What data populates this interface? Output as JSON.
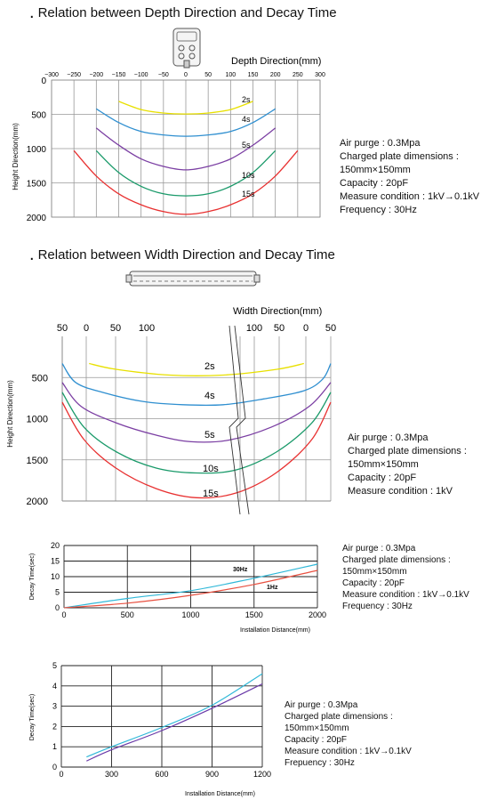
{
  "chart_data": [
    {
      "type": "line",
      "title": "Relation between Depth Direction and Decay Time",
      "xlabel": "Depth Direction(mm)",
      "ylabel": "Height Direction(mm)",
      "xlim": [
        -300,
        300
      ],
      "ylim": [
        0,
        2000
      ],
      "x_ticks": [
        "-300",
        "-250",
        "-200",
        "-150",
        "-100",
        "-50",
        "0",
        "50",
        "100",
        "150",
        "200",
        "250",
        "300"
      ],
      "y_ticks": [
        "0",
        "500",
        "1000",
        "1500",
        "2000"
      ],
      "y_inverted": true,
      "grid": true,
      "series": [
        {
          "name": "2s",
          "color": "#e8e000",
          "x": [
            -150,
            -100,
            -50,
            0,
            50,
            100,
            150
          ],
          "y": [
            310,
            430,
            480,
            495,
            480,
            430,
            310
          ]
        },
        {
          "name": "4s",
          "color": "#2f8fd0",
          "x": [
            -200,
            -150,
            -100,
            -50,
            0,
            50,
            100,
            150,
            200
          ],
          "y": [
            420,
            620,
            750,
            800,
            820,
            800,
            750,
            620,
            420
          ]
        },
        {
          "name": "5s",
          "color": "#7b3fa3",
          "x": [
            -200,
            -150,
            -100,
            -50,
            0,
            50,
            100,
            150,
            200
          ],
          "y": [
            700,
            950,
            1150,
            1260,
            1310,
            1260,
            1150,
            950,
            700
          ]
        },
        {
          "name": "10s",
          "color": "#1a9a6a",
          "x": [
            -200,
            -150,
            -100,
            -50,
            0,
            50,
            100,
            150,
            200
          ],
          "y": [
            1030,
            1350,
            1550,
            1660,
            1690,
            1660,
            1550,
            1350,
            1030
          ]
        },
        {
          "name": "15s",
          "color": "#e83030",
          "x": [
            -250,
            -200,
            -150,
            -100,
            -50,
            0,
            50,
            100,
            150,
            200,
            250
          ],
          "y": [
            1030,
            1400,
            1660,
            1820,
            1920,
            1960,
            1920,
            1820,
            1660,
            1400,
            1030
          ]
        }
      ]
    },
    {
      "type": "line",
      "title": "Relation between Width Direction and Decay Time",
      "xlabel": "Width Direction(mm)",
      "ylabel": "Height Direction(mm)",
      "x_ticks_left": [
        "50",
        "0",
        "50",
        "100"
      ],
      "x_ticks_right": [
        "100",
        "50",
        "0",
        "50"
      ],
      "y_ticks": [
        "500",
        "1000",
        "1500",
        "2000"
      ],
      "ylim": [
        0,
        2000
      ],
      "y_inverted": true,
      "grid": true,
      "series": [
        {
          "name": "2s",
          "color": "#e8e000",
          "x": [
            0.1,
            0.2,
            0.4,
            0.6,
            0.8,
            0.9
          ],
          "y": [
            330,
            400,
            470,
            470,
            400,
            330
          ]
        },
        {
          "name": "4s",
          "color": "#2f8fd0",
          "x": [
            0.0,
            0.05,
            0.15,
            0.3,
            0.45,
            0.6,
            0.75,
            0.9,
            0.97,
            1.0
          ],
          "y": [
            330,
            560,
            680,
            790,
            830,
            830,
            760,
            660,
            520,
            330
          ]
        },
        {
          "name": "5s",
          "color": "#7b3fa3",
          "x": [
            0.0,
            0.07,
            0.2,
            0.35,
            0.48,
            0.62,
            0.78,
            0.92,
            1.0
          ],
          "y": [
            560,
            850,
            1050,
            1200,
            1280,
            1260,
            1100,
            850,
            560
          ]
        },
        {
          "name": "10s",
          "color": "#1a9a6a",
          "x": [
            0.0,
            0.08,
            0.2,
            0.35,
            0.5,
            0.65,
            0.8,
            0.93,
            1.0
          ],
          "y": [
            680,
            1100,
            1400,
            1600,
            1660,
            1620,
            1400,
            1050,
            680
          ]
        },
        {
          "name": "15s",
          "color": "#e83030",
          "x": [
            0.0,
            0.08,
            0.2,
            0.35,
            0.5,
            0.65,
            0.8,
            0.93,
            1.0
          ],
          "y": [
            800,
            1250,
            1600,
            1850,
            1960,
            1900,
            1650,
            1250,
            800
          ]
        }
      ]
    },
    {
      "type": "line",
      "xlabel": "Installation Distance(mm)",
      "ylabel": "Decay Time(sec)",
      "xlim": [
        0,
        2000
      ],
      "ylim": [
        0,
        20
      ],
      "x_ticks": [
        "0",
        "500",
        "1000",
        "1500",
        "2000"
      ],
      "y_ticks": [
        "0",
        "5",
        "10",
        "15",
        "20"
      ],
      "grid": true,
      "series": [
        {
          "name": "30Hz",
          "color": "#30b8d8",
          "x": [
            0,
            500,
            1000,
            1500,
            2000
          ],
          "y": [
            0,
            3,
            5.5,
            9.5,
            14
          ]
        },
        {
          "name": "1Hz",
          "color": "#e85040",
          "x": [
            0,
            500,
            1000,
            1500,
            2000
          ],
          "y": [
            0,
            1.5,
            4,
            7.5,
            12
          ]
        }
      ]
    },
    {
      "type": "line",
      "xlabel": "Installation Distance(mm)",
      "ylabel": "Decay Time(sec)",
      "xlim": [
        0,
        1200
      ],
      "ylim": [
        0,
        5
      ],
      "x_ticks": [
        "0",
        "300",
        "600",
        "900",
        "1200"
      ],
      "y_ticks": [
        "0",
        "1",
        "2",
        "3",
        "4",
        "5"
      ],
      "grid": true,
      "series": [
        {
          "color": "#30b8d8",
          "x": [
            150,
            300,
            600,
            900,
            1200
          ],
          "y": [
            0.5,
            1.0,
            1.95,
            3.05,
            4.6
          ]
        },
        {
          "color": "#6a3aa8",
          "x": [
            150,
            300,
            600,
            900,
            1200
          ],
          "y": [
            0.3,
            0.85,
            1.8,
            2.9,
            4.1
          ]
        }
      ]
    }
  ],
  "conditions": {
    "c1": [
      "Air purge : 0.3Mpa",
      "Charged plate dimensions :",
      "150mm×150mm",
      "Capacity : 20pF",
      "Measure condition : 1kV→0.1kV",
      "Frequency : 30Hz"
    ],
    "c2": [
      "Air purge : 0.3Mpa",
      "Charged plate dimensions :",
      "150mm×150mm",
      "Capacity : 20pF",
      "Measure condition : 1kV"
    ],
    "c3": [
      "Air purge : 0.3Mpa",
      "Charged plate dimensions :",
      "150mm×150mm",
      "Capacity : 20pF",
      "Measure condition : 1kV→0.1kV",
      "Frequency : 30Hz"
    ],
    "c4": [
      "Air purge : 0.3Mpa",
      "Charged plate dimensions :",
      "150mm×150mm",
      "Capacity : 20pF",
      "Measure condition : 1kV→0.1kV",
      "Frepuency : 30Hz"
    ]
  }
}
